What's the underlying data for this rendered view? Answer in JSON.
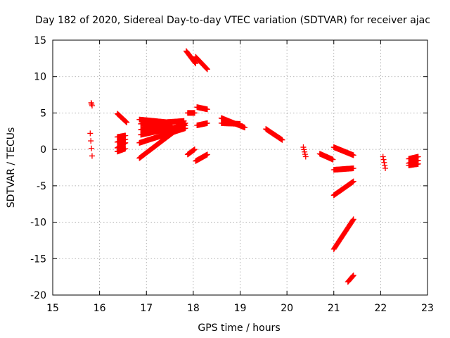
{
  "chart_data": {
    "type": "scatter",
    "title": "Day 182 of 2020, Sidereal Day-to-day VTEC variation (SDTVAR) for receiver ajac",
    "xlabel": "GPS time / hours",
    "ylabel": "SDTVAR / TECUs",
    "xlim": [
      15,
      23
    ],
    "ylim": [
      -20,
      15
    ],
    "xticks": [
      15,
      16,
      17,
      18,
      19,
      20,
      21,
      22,
      23
    ],
    "yticks": [
      -20,
      -15,
      -10,
      -5,
      0,
      5,
      10,
      15
    ],
    "grid": true,
    "marker": "+",
    "series_color": "#ff0000",
    "segments": [
      {
        "x0": 15.82,
        "x1": 15.84,
        "y0": 6.4,
        "y1": 6.0
      },
      {
        "x0": 15.8,
        "x1": 15.84,
        "y0": 2.2,
        "y1": -0.9
      },
      {
        "x0": 16.38,
        "x1": 16.58,
        "y0": 4.9,
        "y1": 3.7
      },
      {
        "x0": 16.38,
        "x1": 16.55,
        "y0": 1.7,
        "y1": 1.9
      },
      {
        "x0": 16.38,
        "x1": 16.55,
        "y0": 1.0,
        "y1": 1.4
      },
      {
        "x0": 16.38,
        "x1": 16.55,
        "y0": 0.2,
        "y1": 0.9
      },
      {
        "x0": 16.38,
        "x1": 16.55,
        "y0": -0.3,
        "y1": 0.1
      },
      {
        "x0": 16.85,
        "x1": 17.83,
        "y0": -1.2,
        "y1": 3.6
      },
      {
        "x0": 16.85,
        "x1": 17.83,
        "y0": 0.9,
        "y1": 2.9
      },
      {
        "x0": 16.88,
        "x1": 17.83,
        "y0": 2.0,
        "y1": 3.3
      },
      {
        "x0": 16.88,
        "x1": 17.55,
        "y0": 2.7,
        "y1": 3.6
      },
      {
        "x0": 16.85,
        "x1": 17.48,
        "y0": 4.1,
        "y1": 3.7
      },
      {
        "x0": 16.88,
        "x1": 17.8,
        "y0": 3.5,
        "y1": 3.9
      },
      {
        "x0": 17.3,
        "x1": 17.8,
        "y0": 2.3,
        "y1": 3.4
      },
      {
        "x0": 17.88,
        "x1": 18.03,
        "y0": 5.0,
        "y1": 5.0
      },
      {
        "x0": 17.85,
        "x1": 18.05,
        "y0": 13.5,
        "y1": 11.8
      },
      {
        "x0": 18.05,
        "x1": 18.3,
        "y0": 12.7,
        "y1": 11.0
      },
      {
        "x0": 17.88,
        "x1": 18.03,
        "y0": -0.7,
        "y1": 0.0
      },
      {
        "x0": 18.05,
        "x1": 18.3,
        "y0": -1.6,
        "y1": -0.7
      },
      {
        "x0": 18.08,
        "x1": 18.3,
        "y0": 5.8,
        "y1": 5.5
      },
      {
        "x0": 18.08,
        "x1": 18.3,
        "y0": 3.3,
        "y1": 3.6
      },
      {
        "x0": 18.6,
        "x1": 19.1,
        "y0": 4.3,
        "y1": 3.0
      },
      {
        "x0": 18.6,
        "x1": 19.0,
        "y0": 3.6,
        "y1": 3.5
      },
      {
        "x0": 19.55,
        "x1": 19.9,
        "y0": 2.8,
        "y1": 1.3
      },
      {
        "x0": 20.35,
        "x1": 20.4,
        "y0": 0.3,
        "y1": -1.0
      },
      {
        "x0": 20.7,
        "x1": 20.98,
        "y0": -0.6,
        "y1": -1.4
      },
      {
        "x0": 21.0,
        "x1": 21.42,
        "y0": 0.3,
        "y1": -0.8
      },
      {
        "x0": 21.0,
        "x1": 21.42,
        "y0": -2.8,
        "y1": -2.6
      },
      {
        "x0": 21.0,
        "x1": 21.42,
        "y0": -6.3,
        "y1": -4.4
      },
      {
        "x0": 21.0,
        "x1": 21.42,
        "y0": -13.7,
        "y1": -9.6
      },
      {
        "x0": 21.3,
        "x1": 21.42,
        "y0": -18.2,
        "y1": -17.3
      },
      {
        "x0": 22.05,
        "x1": 22.1,
        "y0": -1.0,
        "y1": -2.6
      },
      {
        "x0": 22.6,
        "x1": 22.8,
        "y0": -1.9,
        "y1": -1.5
      },
      {
        "x0": 22.6,
        "x1": 22.8,
        "y0": -1.3,
        "y1": -1.0
      },
      {
        "x0": 22.6,
        "x1": 22.8,
        "y0": -2.2,
        "y1": -2.0
      }
    ]
  }
}
